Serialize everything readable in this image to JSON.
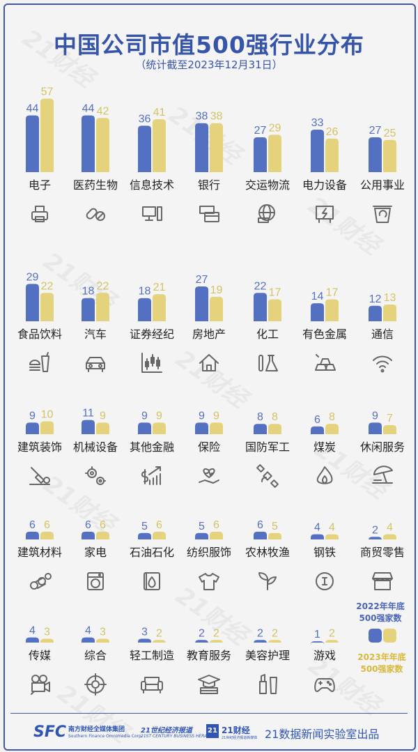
{
  "title": "中国公司市值500强行业分布",
  "subtitle": "（统计截至2023年12月31日）",
  "watermark": "21财经",
  "colors": {
    "series_2022": "#5470c0",
    "series_2023": "#e4d27c",
    "accent": "#3654a8"
  },
  "legend": {
    "s2022_line1": "2022年年底",
    "s2022_line2": "500强家数",
    "s2023_line1": "2023年年底",
    "s2023_line2": "500强家数"
  },
  "footer": {
    "sfc_logo": "SFC",
    "sfc_cn": "南方财经全媒体集团",
    "sfc_en": "Southern Finance Omnimedia Corp.",
    "herald_cn": "21世纪经济报道",
    "herald_en": "21ST CENTURY BUSINESS HERALD",
    "caijing_box": "21",
    "caijing_cn": "21财经",
    "caijing_en": "21世纪经济报道新媒体",
    "credit": "21数据新闻实验室出品"
  },
  "chart_data": {
    "type": "bar",
    "title": "中国公司市值500强行业分布",
    "subtitle": "（统计截至2023年12月31日）",
    "series_names": [
      "2022年年底500强家数",
      "2023年年底500强家数"
    ],
    "categories": [
      "电子",
      "医药生物",
      "信息技术",
      "银行",
      "交运物流",
      "电力设备",
      "公用事业",
      "食品饮料",
      "汽车",
      "证券经纪",
      "房地产",
      "化工",
      "有色金属",
      "通信",
      "建筑装饰",
      "机械设备",
      "其他金融",
      "保险",
      "国防军工",
      "煤炭",
      "休闲服务",
      "建筑材料",
      "家电",
      "石油石化",
      "纺织服饰",
      "农林牧渔",
      "钢铁",
      "商贸零售",
      "传媒",
      "综合",
      "轻工制造",
      "教育服务",
      "美容护理",
      "游戏"
    ],
    "series": [
      {
        "name": "2022年年底500强家数",
        "values": [
          44,
          44,
          36,
          38,
          27,
          33,
          27,
          29,
          18,
          18,
          27,
          22,
          14,
          12,
          9,
          11,
          9,
          9,
          8,
          6,
          9,
          6,
          6,
          5,
          5,
          6,
          4,
          2,
          4,
          4,
          3,
          2,
          2,
          1
        ]
      },
      {
        "name": "2023年年底500强家数",
        "values": [
          57,
          42,
          41,
          38,
          29,
          26,
          25,
          22,
          22,
          21,
          19,
          17,
          17,
          13,
          10,
          9,
          9,
          9,
          8,
          8,
          7,
          6,
          6,
          6,
          6,
          5,
          4,
          4,
          3,
          3,
          2,
          2,
          2,
          2
        ]
      }
    ],
    "icons": [
      "printer-icon",
      "pills-icon",
      "computer-icon",
      "atm-card-icon",
      "globe-truck-icon",
      "power-panel-icon",
      "recycle-bin-icon",
      "burger-drink-icon",
      "car-icon",
      "candlestick-icon",
      "house-icon",
      "lab-flask-icon",
      "gold-bars-icon",
      "wifi-icon",
      "shovel-brick-icon",
      "gears-icon",
      "dollar-growth-icon",
      "heart-hand-icon",
      "satellite-icon",
      "fire-icon",
      "beach-umbrella-icon",
      "logs-icon",
      "washing-machine-icon",
      "oil-tank-icon",
      "tshirt-icon",
      "leaf-icon",
      "steel-coin-icon",
      "shop-icon",
      "film-camera-icon",
      "target-icon",
      "sofa-icon",
      "graduation-cap-icon",
      "lipstick-icon",
      "gamepad-icon"
    ],
    "rows": 5,
    "per_row": 7
  }
}
